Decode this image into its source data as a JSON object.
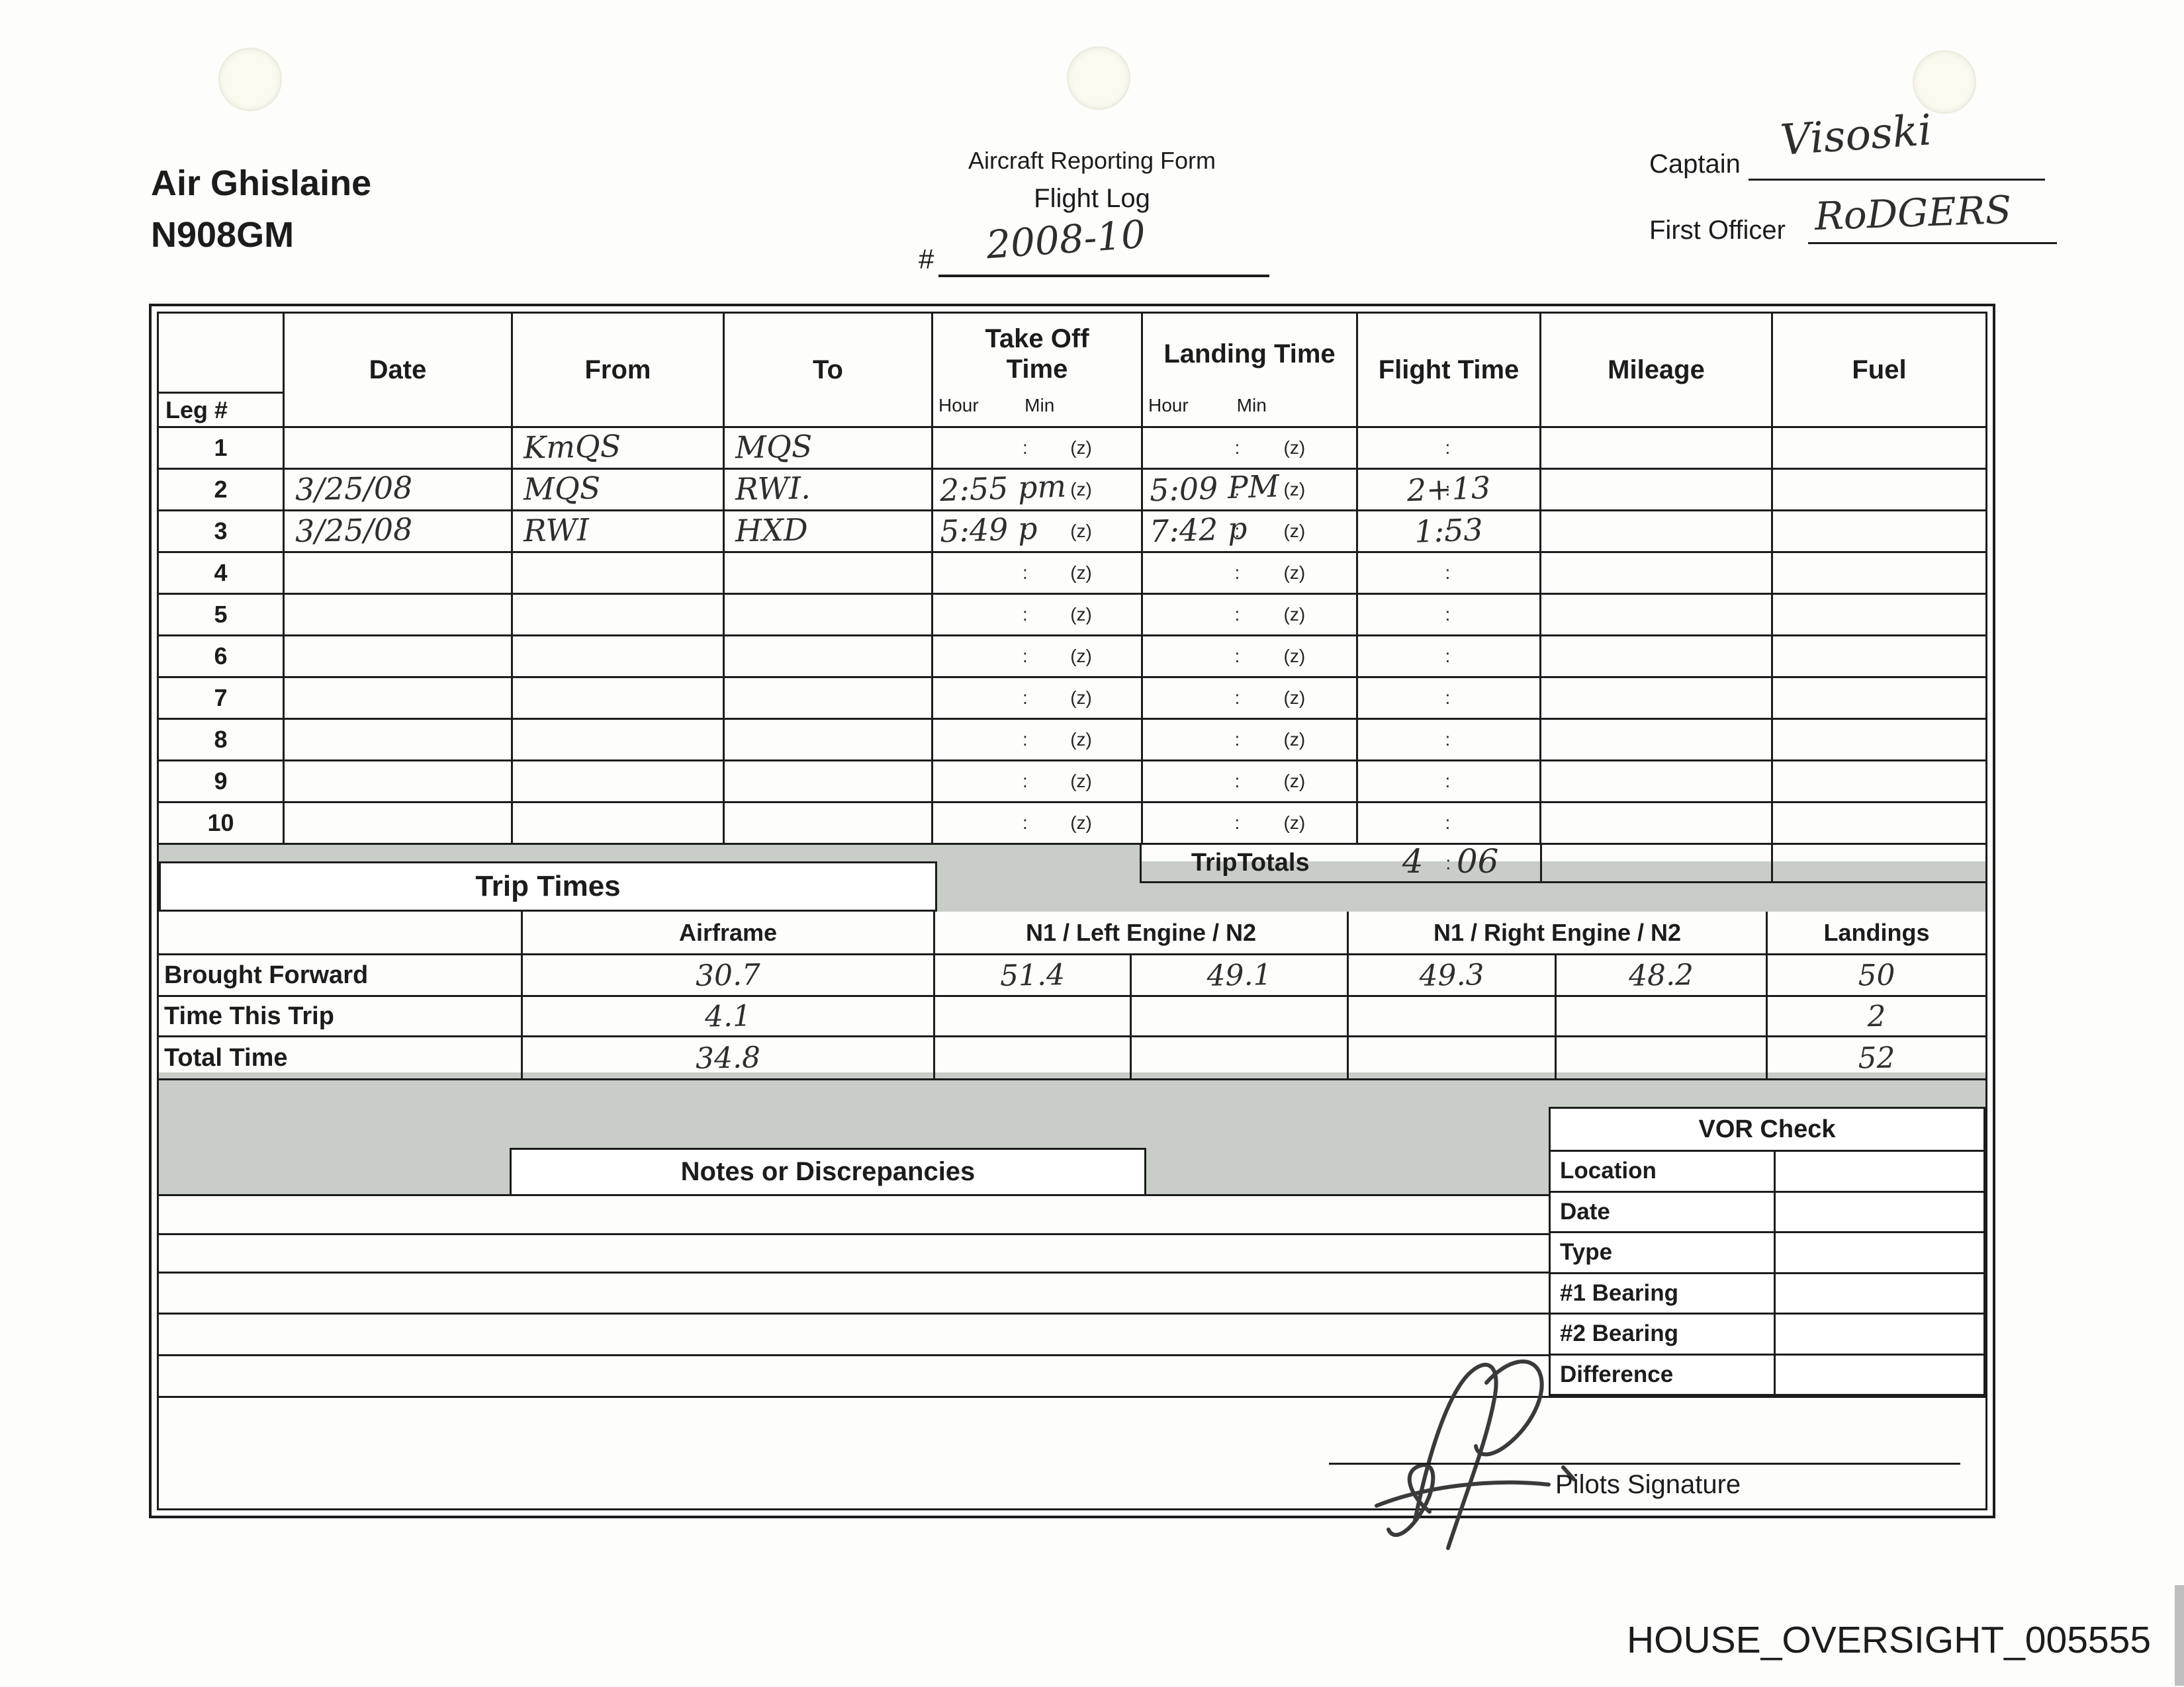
{
  "header": {
    "company": "Air Ghislaine",
    "tail_number": "N908GM",
    "form_title": "Aircraft Reporting Form",
    "form_subtitle": "Flight Log",
    "form_number_prefix": "#",
    "form_number": "2008-10",
    "captain_label": "Captain",
    "captain_name": "Visoski",
    "first_officer_label": "First Officer",
    "first_officer_name": "RoDGERS"
  },
  "flight_log": {
    "columns": {
      "leg": "Leg #",
      "date": "Date",
      "from": "From",
      "to": "To",
      "takeoff": "Take Off Time",
      "landing": "Landing Time",
      "flight": "Flight Time",
      "mileage": "Mileage",
      "fuel": "Fuel",
      "hour": "Hour",
      "min": "Min"
    },
    "placeholders": {
      "colon": ":",
      "zulu": "(z)"
    },
    "legs": [
      {
        "num": "1",
        "date": "",
        "from": "KmQS",
        "to": "MQS",
        "takeoff": "",
        "landing": "",
        "flight": ""
      },
      {
        "num": "2",
        "date": "3/25/08",
        "from": "MQS",
        "to": "RWI.",
        "takeoff": "2:55 pm",
        "landing": "5:09 PM",
        "flight": "2+13"
      },
      {
        "num": "3",
        "date": "3/25/08",
        "from": "RWI",
        "to": "HXD",
        "takeoff": "5:49 p",
        "landing": "7:42 p",
        "flight": "1:53"
      },
      {
        "num": "4",
        "date": "",
        "from": "",
        "to": "",
        "takeoff": "",
        "landing": "",
        "flight": ""
      },
      {
        "num": "5",
        "date": "",
        "from": "",
        "to": "",
        "takeoff": "",
        "landing": "",
        "flight": ""
      },
      {
        "num": "6",
        "date": "",
        "from": "",
        "to": "",
        "takeoff": "",
        "landing": "",
        "flight": ""
      },
      {
        "num": "7",
        "date": "",
        "from": "",
        "to": "",
        "takeoff": "",
        "landing": "",
        "flight": ""
      },
      {
        "num": "8",
        "date": "",
        "from": "",
        "to": "",
        "takeoff": "",
        "landing": "",
        "flight": ""
      },
      {
        "num": "9",
        "date": "",
        "from": "",
        "to": "",
        "takeoff": "",
        "landing": "",
        "flight": ""
      },
      {
        "num": "10",
        "date": "",
        "from": "",
        "to": "",
        "takeoff": "",
        "landing": "",
        "flight": ""
      }
    ],
    "trip_totals": {
      "label": "TripTotals",
      "hours": "4",
      "minutes": "06"
    }
  },
  "trip_times": {
    "title": "Trip Times",
    "headers": {
      "airframe": "Airframe",
      "left_engine": "N1 / Left Engine / N2",
      "right_engine": "N1 / Right Engine / N2",
      "landings": "Landings"
    },
    "rows": [
      {
        "label": "Brought Forward",
        "airframe": "30.7",
        "left_n1": "51.4",
        "left_n2": "49.1",
        "right_n1": "49.3",
        "right_n2": "48.2",
        "landings": "50"
      },
      {
        "label": "Time This Trip",
        "airframe": "4.1",
        "left_n1": "",
        "left_n2": "",
        "right_n1": "",
        "right_n2": "",
        "landings": "2"
      },
      {
        "label": "Total Time",
        "airframe": "34.8",
        "left_n1": "",
        "left_n2": "",
        "right_n1": "",
        "right_n2": "",
        "landings": "52"
      }
    ]
  },
  "notes": {
    "title": "Notes or Discrepancies"
  },
  "vor_check": {
    "title": "VOR Check",
    "labels": [
      "Location",
      "Date",
      "Type",
      "#1 Bearing",
      "#2 Bearing",
      "Difference"
    ]
  },
  "signature": {
    "label": "Pilots Signature"
  },
  "footer": {
    "doc_id": "HOUSE_OVERSIGHT_005555"
  }
}
